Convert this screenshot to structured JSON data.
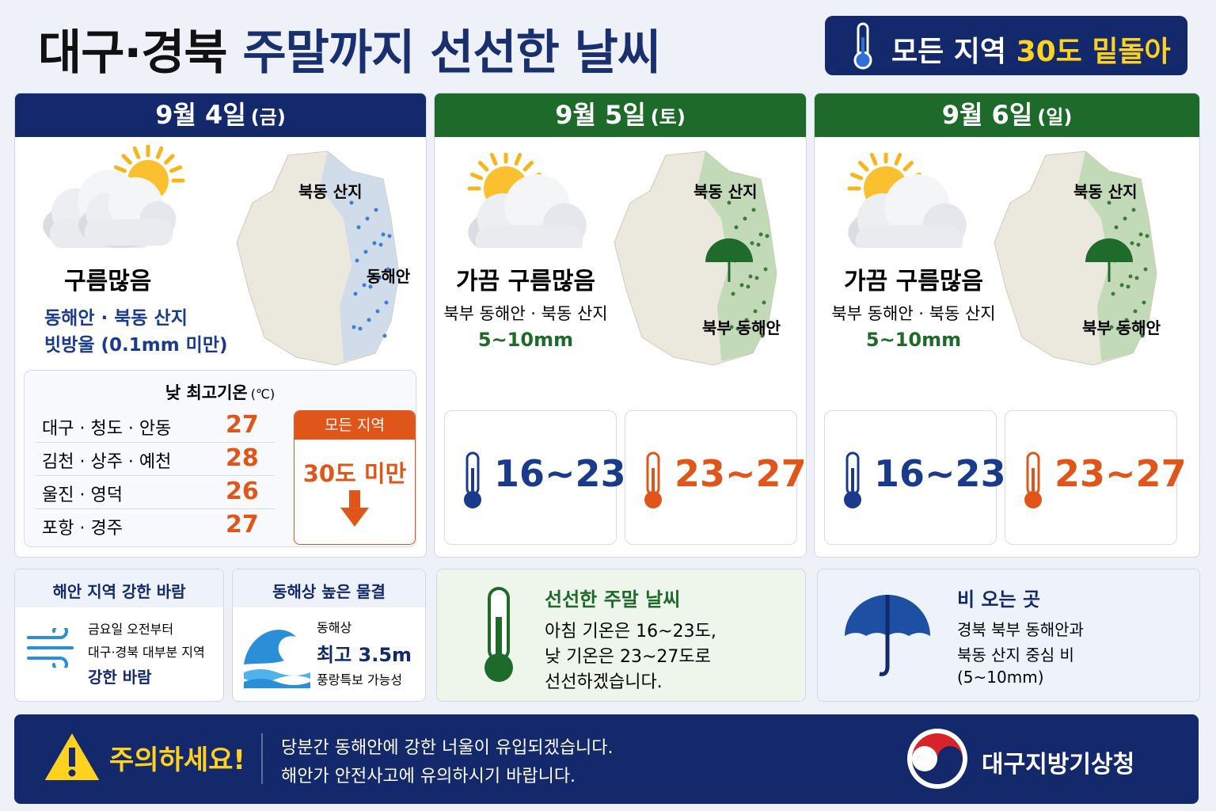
{
  "header": {
    "title_main": "대구·경북",
    "title_sub": "주말까지 선선한 날씨",
    "badge_lead": "모든 지역",
    "badge_highlight": "30도 밑돌아"
  },
  "days": [
    {
      "date": "9월 4일",
      "weekday": "(금)",
      "condition": "구름많음",
      "area": "동해안 · 북동 산지",
      "amount": "빗방울 (0.1mm 미만)",
      "map_labels": [
        "북동 산지",
        "동해안"
      ]
    },
    {
      "date": "9월 5일",
      "weekday": "(토)",
      "condition": "가끔 구름많음",
      "area": "북부 동해안 · 북동 산지",
      "amount": "5~10mm",
      "map_labels": [
        "북동 산지",
        "북부 동해안"
      ],
      "low": "16~23",
      "high": "23~27"
    },
    {
      "date": "9월 6일",
      "weekday": "(일)",
      "condition": "가끔 구름많음",
      "area": "북부 동해안 · 북동 산지",
      "amount": "5~10mm",
      "map_labels": [
        "북동 산지",
        "북부 동해안"
      ],
      "low": "16~23",
      "high": "23~27"
    }
  ],
  "high_temps": {
    "title": "낮 최고기온",
    "unit": "(℃)",
    "rows": [
      [
        "대구 · 청도 · 안동",
        "27"
      ],
      [
        "김천 · 상주 · 예천",
        "28"
      ],
      [
        "울진 · 영덕",
        "26"
      ],
      [
        "포항 · 경주",
        "27"
      ]
    ],
    "badge_title": "모든 지역",
    "badge_text": "30도 미만"
  },
  "cards": [
    {
      "title": "해안 지역 강한 바람",
      "lines": [
        "금요일 오전부터",
        "대구·경북 대부분 지역",
        "강한 바람"
      ]
    },
    {
      "title": "동해상 높은 물결",
      "lines": [
        "동해상",
        "최고 3.5m",
        "풍랑특보 가능성"
      ]
    },
    {
      "title": "선선한 주말 날씨",
      "lines": [
        "아침 기온은 16~23도,",
        "낮 기온은 23~27도로",
        "선선하겠습니다."
      ]
    },
    {
      "title": "비 오는 곳",
      "lines": [
        "경북 북부 동해안과",
        "북동 산지 중심 비",
        "(5~10mm)"
      ]
    }
  ],
  "footer": {
    "warning": "주의하세요!",
    "lines": [
      "당분간 동해안에 강한 너울이 유입되겠습니다.",
      "해안가 안전사고에 유의하시기 바랍니다."
    ],
    "agency": "대구지방기상청"
  }
}
